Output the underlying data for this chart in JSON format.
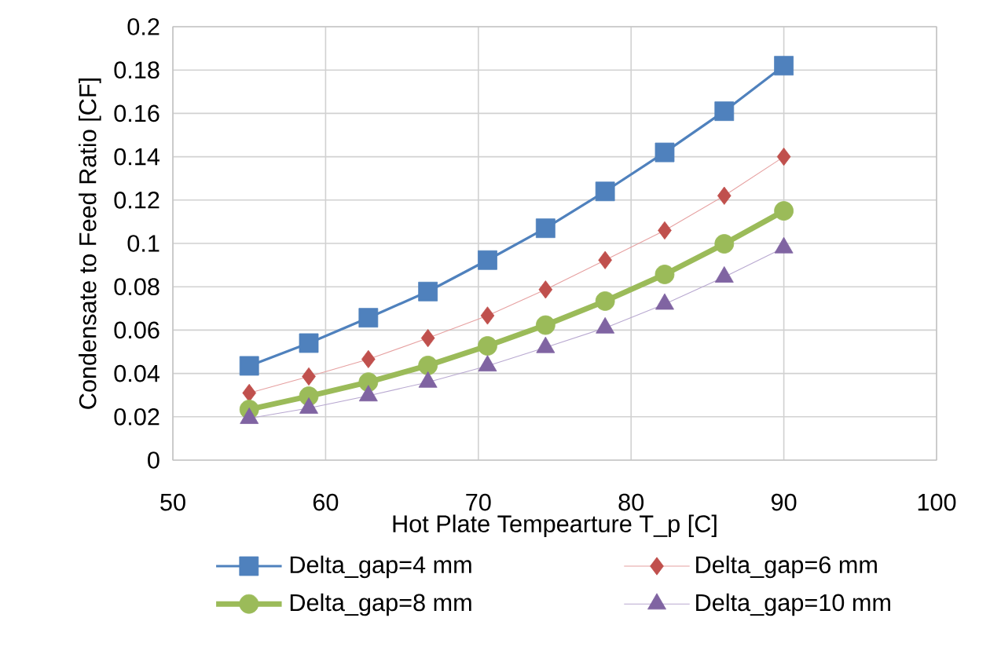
{
  "chart_data": {
    "type": "line",
    "xlabel": "Hot Plate Tempearture T_p [C]",
    "ylabel": "Condensate to Feed Ratio [CF]",
    "x": [
      55,
      58.9,
      62.8,
      66.7,
      70.6,
      74.4,
      78.3,
      82.2,
      86.1,
      90
    ],
    "series": [
      {
        "name": "Delta_gap=4 mm",
        "color": "#4f81bd",
        "marker": "square",
        "values": [
          0.0435,
          0.054,
          0.0657,
          0.0778,
          0.0923,
          0.107,
          0.124,
          0.142,
          0.161,
          0.182
        ]
      },
      {
        "name": "Delta_gap=6 mm",
        "color": "#c0504d",
        "marker": "diamond",
        "values": [
          0.031,
          0.0386,
          0.0466,
          0.0563,
          0.0667,
          0.0787,
          0.0923,
          0.106,
          0.122,
          0.14
        ]
      },
      {
        "name": "Delta_gap=8 mm",
        "color": "#9bbb59",
        "marker": "circle",
        "values": [
          0.0234,
          0.0295,
          0.036,
          0.0437,
          0.0527,
          0.0623,
          0.0734,
          0.0857,
          0.0998,
          0.115
        ]
      },
      {
        "name": "Delta_gap=10 mm",
        "color": "#8064a2",
        "marker": "triangle",
        "values": [
          0.0193,
          0.024,
          0.0297,
          0.036,
          0.0435,
          0.052,
          0.061,
          0.072,
          0.0845,
          0.098
        ]
      }
    ],
    "xlim": [
      50,
      100
    ],
    "xticks": [
      50,
      60,
      70,
      80,
      90,
      100
    ],
    "ylim": [
      0,
      0.2
    ],
    "yticks": [
      0,
      0.02,
      0.04,
      0.06,
      0.08,
      0.1,
      0.12,
      0.14,
      0.16,
      0.18,
      0.2
    ],
    "grid": true,
    "legend": "bottom"
  }
}
